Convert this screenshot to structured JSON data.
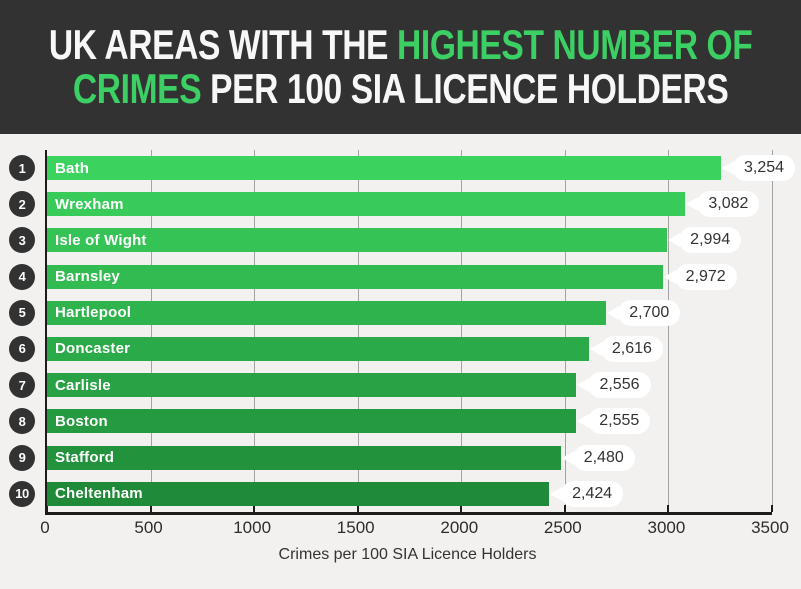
{
  "header": {
    "line1_white": "UK AREAS WITH THE ",
    "line1_green": "HIGHEST NUMBER OF",
    "line2_green": "CRIMES",
    "line2_white": " PER 100 SIA LICENCE HOLDERS"
  },
  "colors": {
    "header_background": "#333233",
    "accent_green": "#3ccf63",
    "chart_background": "#f2f1ef",
    "axis": "#1c1c1c",
    "gridline": "#a3a3a3",
    "badge": "#333233",
    "bubble_background": "#ffffff",
    "bubble_text": "#333333"
  },
  "chart_data": {
    "type": "bar",
    "orientation": "horizontal",
    "title": "UK AREAS WITH THE HIGHEST NUMBER OF CRIMES PER 100 SIA LICENCE HOLDERS",
    "xlabel": "Crimes per 100 SIA Licence Holders",
    "xlim": [
      0,
      3500
    ],
    "xticks": [
      0,
      500,
      1000,
      1500,
      2000,
      2500,
      3000,
      3500
    ],
    "grid": "vertical",
    "legend": "none",
    "bars": [
      {
        "rank": "1",
        "label": "Bath",
        "value": 3254,
        "display_value": "3,254",
        "color": "#3bd35e"
      },
      {
        "rank": "2",
        "label": "Wrexham",
        "value": 3082,
        "display_value": "3,082",
        "color": "#38cb5a"
      },
      {
        "rank": "3",
        "label": "Isle of Wight",
        "value": 2994,
        "display_value": "2,994",
        "color": "#35c356"
      },
      {
        "rank": "4",
        "label": "Barnsley",
        "value": 2972,
        "display_value": "2,972",
        "color": "#31bb51"
      },
      {
        "rank": "5",
        "label": "Hartlepool",
        "value": 2700,
        "display_value": "2,700",
        "color": "#2eb34d"
      },
      {
        "rank": "6",
        "label": "Doncaster",
        "value": 2616,
        "display_value": "2,616",
        "color": "#2baa49"
      },
      {
        "rank": "7",
        "label": "Carlisle",
        "value": 2556,
        "display_value": "2,556",
        "color": "#28a245"
      },
      {
        "rank": "8",
        "label": "Boston",
        "value": 2555,
        "display_value": "2,555",
        "color": "#259a41"
      },
      {
        "rank": "9",
        "label": "Stafford",
        "value": 2480,
        "display_value": "2,480",
        "color": "#22923c"
      },
      {
        "rank": "10",
        "label": "Cheltenham",
        "value": 2424,
        "display_value": "2,424",
        "color": "#1f8a38"
      }
    ]
  }
}
